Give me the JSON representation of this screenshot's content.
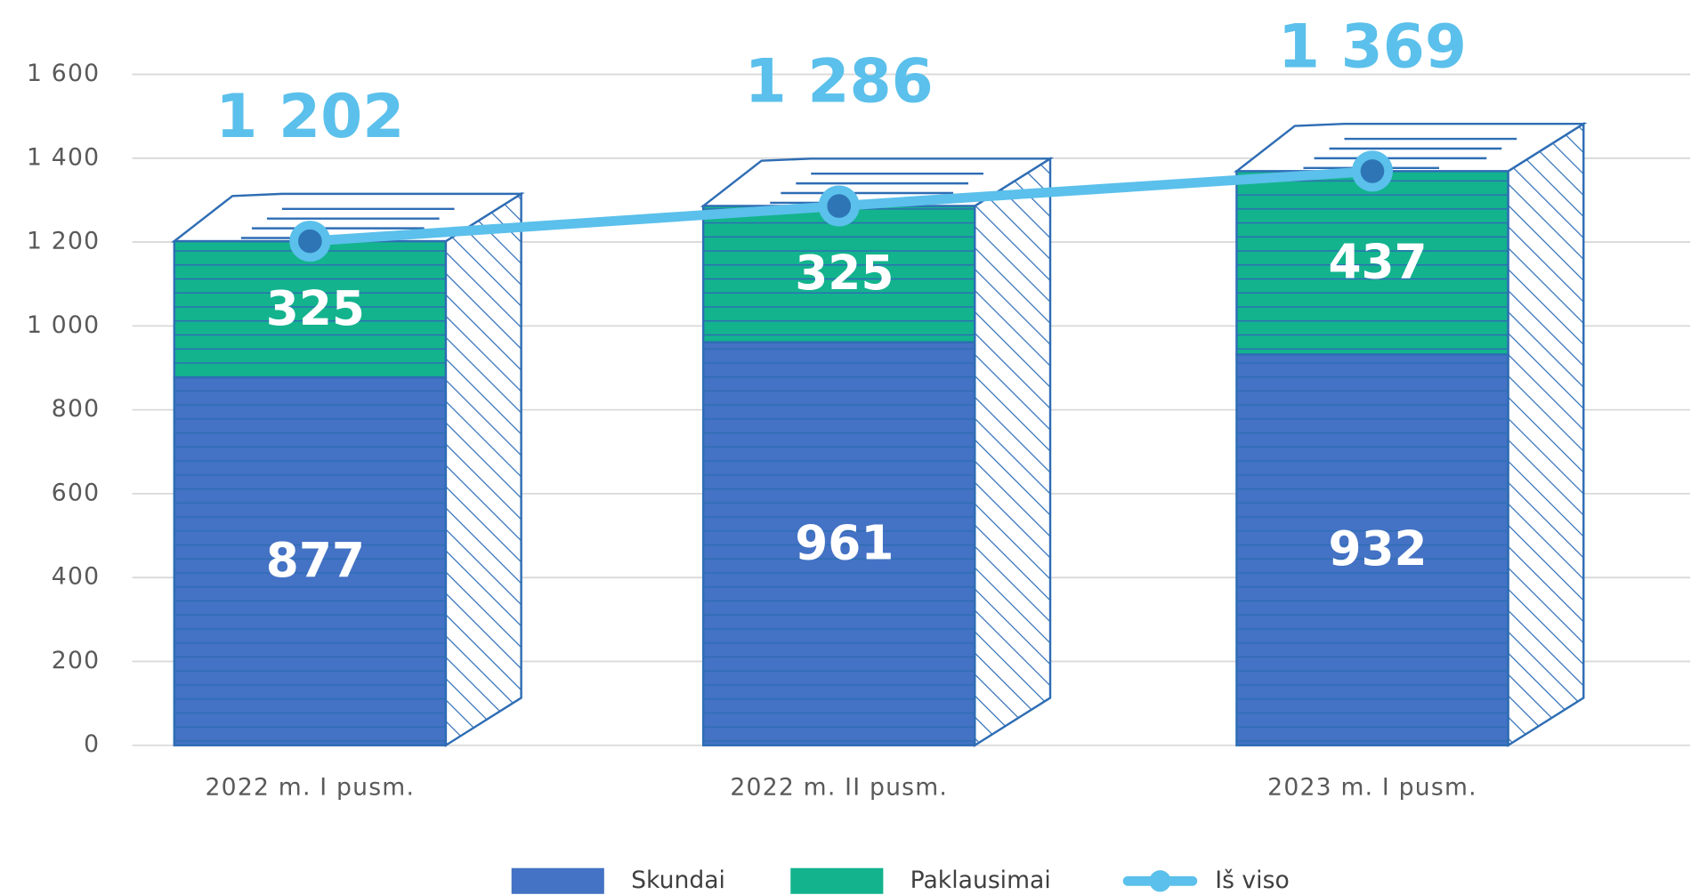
{
  "chart_data": {
    "type": "stacked_bar_line",
    "categories": [
      "2022 m. I pusm.",
      "2022 m. II pusm.",
      "2023 m. I pusm."
    ],
    "series": [
      {
        "name": "Skundai",
        "color": "#4472c4",
        "values": [
          877,
          961,
          932
        ]
      },
      {
        "name": "Paklausimai",
        "color": "#13b38e",
        "values": [
          325,
          325,
          437
        ]
      },
      {
        "name": "Iš viso",
        "type": "line",
        "color": "#5bc0eb",
        "values": [
          1202,
          1286,
          1369
        ],
        "value_labels": [
          "1 202",
          "1 286",
          "1 369"
        ]
      }
    ],
    "ylim": [
      0,
      1600
    ],
    "yticks": [
      0,
      200,
      400,
      600,
      800,
      {
        "value": 1000,
        "label": "1 000"
      },
      {
        "value": 1200,
        "label": "1 200"
      },
      {
        "value": 1400,
        "label": "1 400"
      },
      {
        "value": 1600,
        "label": "1 600"
      }
    ],
    "grid": true,
    "legend": "bottom"
  }
}
